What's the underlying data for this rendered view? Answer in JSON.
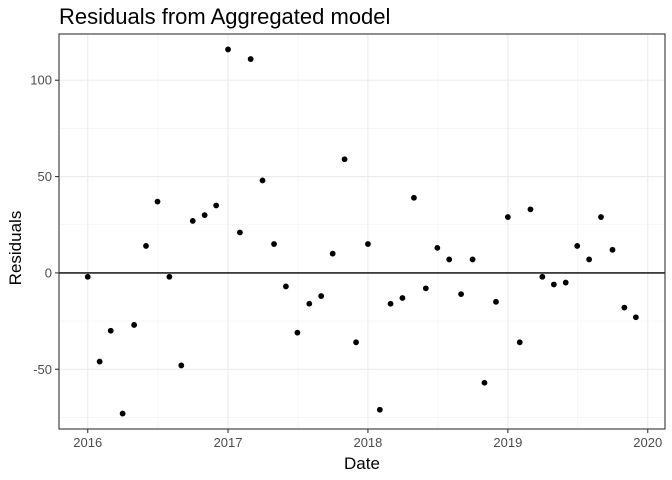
{
  "chart_data": {
    "type": "scatter",
    "title": "Residuals from Aggregated model",
    "xlabel": "Date",
    "ylabel": "Residuals",
    "xlim": [
      "2015-10-18",
      "2020-02-15"
    ],
    "ylim": [
      -81,
      124
    ],
    "x_ticks": [
      "2016",
      "2017",
      "2018",
      "2019",
      "2020"
    ],
    "y_ticks": [
      "-50",
      "0",
      "50",
      "100"
    ],
    "reference_line_y": 0,
    "grid": true,
    "theme": "bw",
    "point_color": "#000000",
    "points": [
      {
        "x": "2016-01-01",
        "y": -2
      },
      {
        "x": "2016-02-01",
        "y": -46
      },
      {
        "x": "2016-03-01",
        "y": -30
      },
      {
        "x": "2016-04-01",
        "y": -73
      },
      {
        "x": "2016-05-01",
        "y": -27
      },
      {
        "x": "2016-06-01",
        "y": 14
      },
      {
        "x": "2016-07-01",
        "y": 37
      },
      {
        "x": "2016-08-01",
        "y": -2
      },
      {
        "x": "2016-09-01",
        "y": -48
      },
      {
        "x": "2016-10-01",
        "y": 27
      },
      {
        "x": "2016-11-01",
        "y": 30
      },
      {
        "x": "2016-12-01",
        "y": 35
      },
      {
        "x": "2017-01-01",
        "y": 116
      },
      {
        "x": "2017-02-01",
        "y": 21
      },
      {
        "x": "2017-03-01",
        "y": 111
      },
      {
        "x": "2017-04-01",
        "y": 48
      },
      {
        "x": "2017-05-01",
        "y": 15
      },
      {
        "x": "2017-06-01",
        "y": -7
      },
      {
        "x": "2017-07-01",
        "y": -31
      },
      {
        "x": "2017-08-01",
        "y": -16
      },
      {
        "x": "2017-09-01",
        "y": -12
      },
      {
        "x": "2017-10-01",
        "y": 10
      },
      {
        "x": "2017-11-01",
        "y": 59
      },
      {
        "x": "2017-12-01",
        "y": -36
      },
      {
        "x": "2018-01-01",
        "y": 15
      },
      {
        "x": "2018-02-01",
        "y": -71
      },
      {
        "x": "2018-03-01",
        "y": -16
      },
      {
        "x": "2018-04-01",
        "y": -13
      },
      {
        "x": "2018-05-01",
        "y": 39
      },
      {
        "x": "2018-06-01",
        "y": -8
      },
      {
        "x": "2018-07-01",
        "y": 13
      },
      {
        "x": "2018-08-01",
        "y": 7
      },
      {
        "x": "2018-09-01",
        "y": -11
      },
      {
        "x": "2018-10-01",
        "y": 7
      },
      {
        "x": "2018-11-01",
        "y": -57
      },
      {
        "x": "2018-12-01",
        "y": -15
      },
      {
        "x": "2019-01-01",
        "y": 29
      },
      {
        "x": "2019-02-01",
        "y": -36
      },
      {
        "x": "2019-03-01",
        "y": 33
      },
      {
        "x": "2019-04-01",
        "y": -2
      },
      {
        "x": "2019-05-01",
        "y": -6
      },
      {
        "x": "2019-06-01",
        "y": -5
      },
      {
        "x": "2019-07-01",
        "y": 14
      },
      {
        "x": "2019-08-01",
        "y": 7
      },
      {
        "x": "2019-09-01",
        "y": 29
      },
      {
        "x": "2019-10-01",
        "y": 12
      },
      {
        "x": "2019-11-01",
        "y": -18
      },
      {
        "x": "2019-12-01",
        "y": -23
      }
    ]
  }
}
